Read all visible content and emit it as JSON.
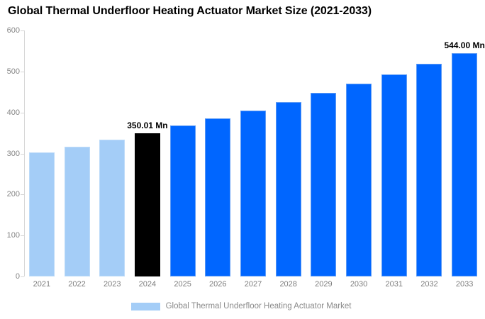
{
  "title": "Global Thermal Underfloor Heating Actuator Market Size (2021-2033)",
  "legend": {
    "label": "Global Thermal Underfloor Heating Actuator Market",
    "swatch_color": "#a4cdf7"
  },
  "colors": {
    "historical_bar": "#a4cdf7",
    "historical_border": "#bddbf9",
    "current_bar": "#000000",
    "forecast_bar": "#0066ff",
    "forecast_border": "#5e9bf5",
    "axis_line": "#d6d6d6",
    "axis_label": "#858585"
  },
  "chart_data": {
    "type": "bar",
    "title": "Global Thermal Underfloor Heating Actuator Market Size (2021-2033)",
    "xlabel": "",
    "ylabel": "",
    "unit": "Mn",
    "categories": [
      "2021",
      "2022",
      "2023",
      "2024",
      "2025",
      "2026",
      "2027",
      "2028",
      "2029",
      "2030",
      "2031",
      "2032",
      "2033"
    ],
    "values": [
      302,
      317,
      333,
      350.01,
      368,
      386,
      405,
      426,
      447,
      470,
      493,
      518,
      544
    ],
    "groups": [
      "historical",
      "historical",
      "historical",
      "current",
      "forecast",
      "forecast",
      "forecast",
      "forecast",
      "forecast",
      "forecast",
      "forecast",
      "forecast",
      "forecast"
    ],
    "ylim": [
      0,
      600
    ],
    "yticks": [
      0,
      100,
      200,
      300,
      400,
      500,
      600
    ],
    "grid": false,
    "legend_position": "bottom",
    "annotations": [
      {
        "category": "2024",
        "text": "350.01 Mn"
      },
      {
        "category": "2033",
        "text": "544.00 Mn"
      }
    ]
  }
}
